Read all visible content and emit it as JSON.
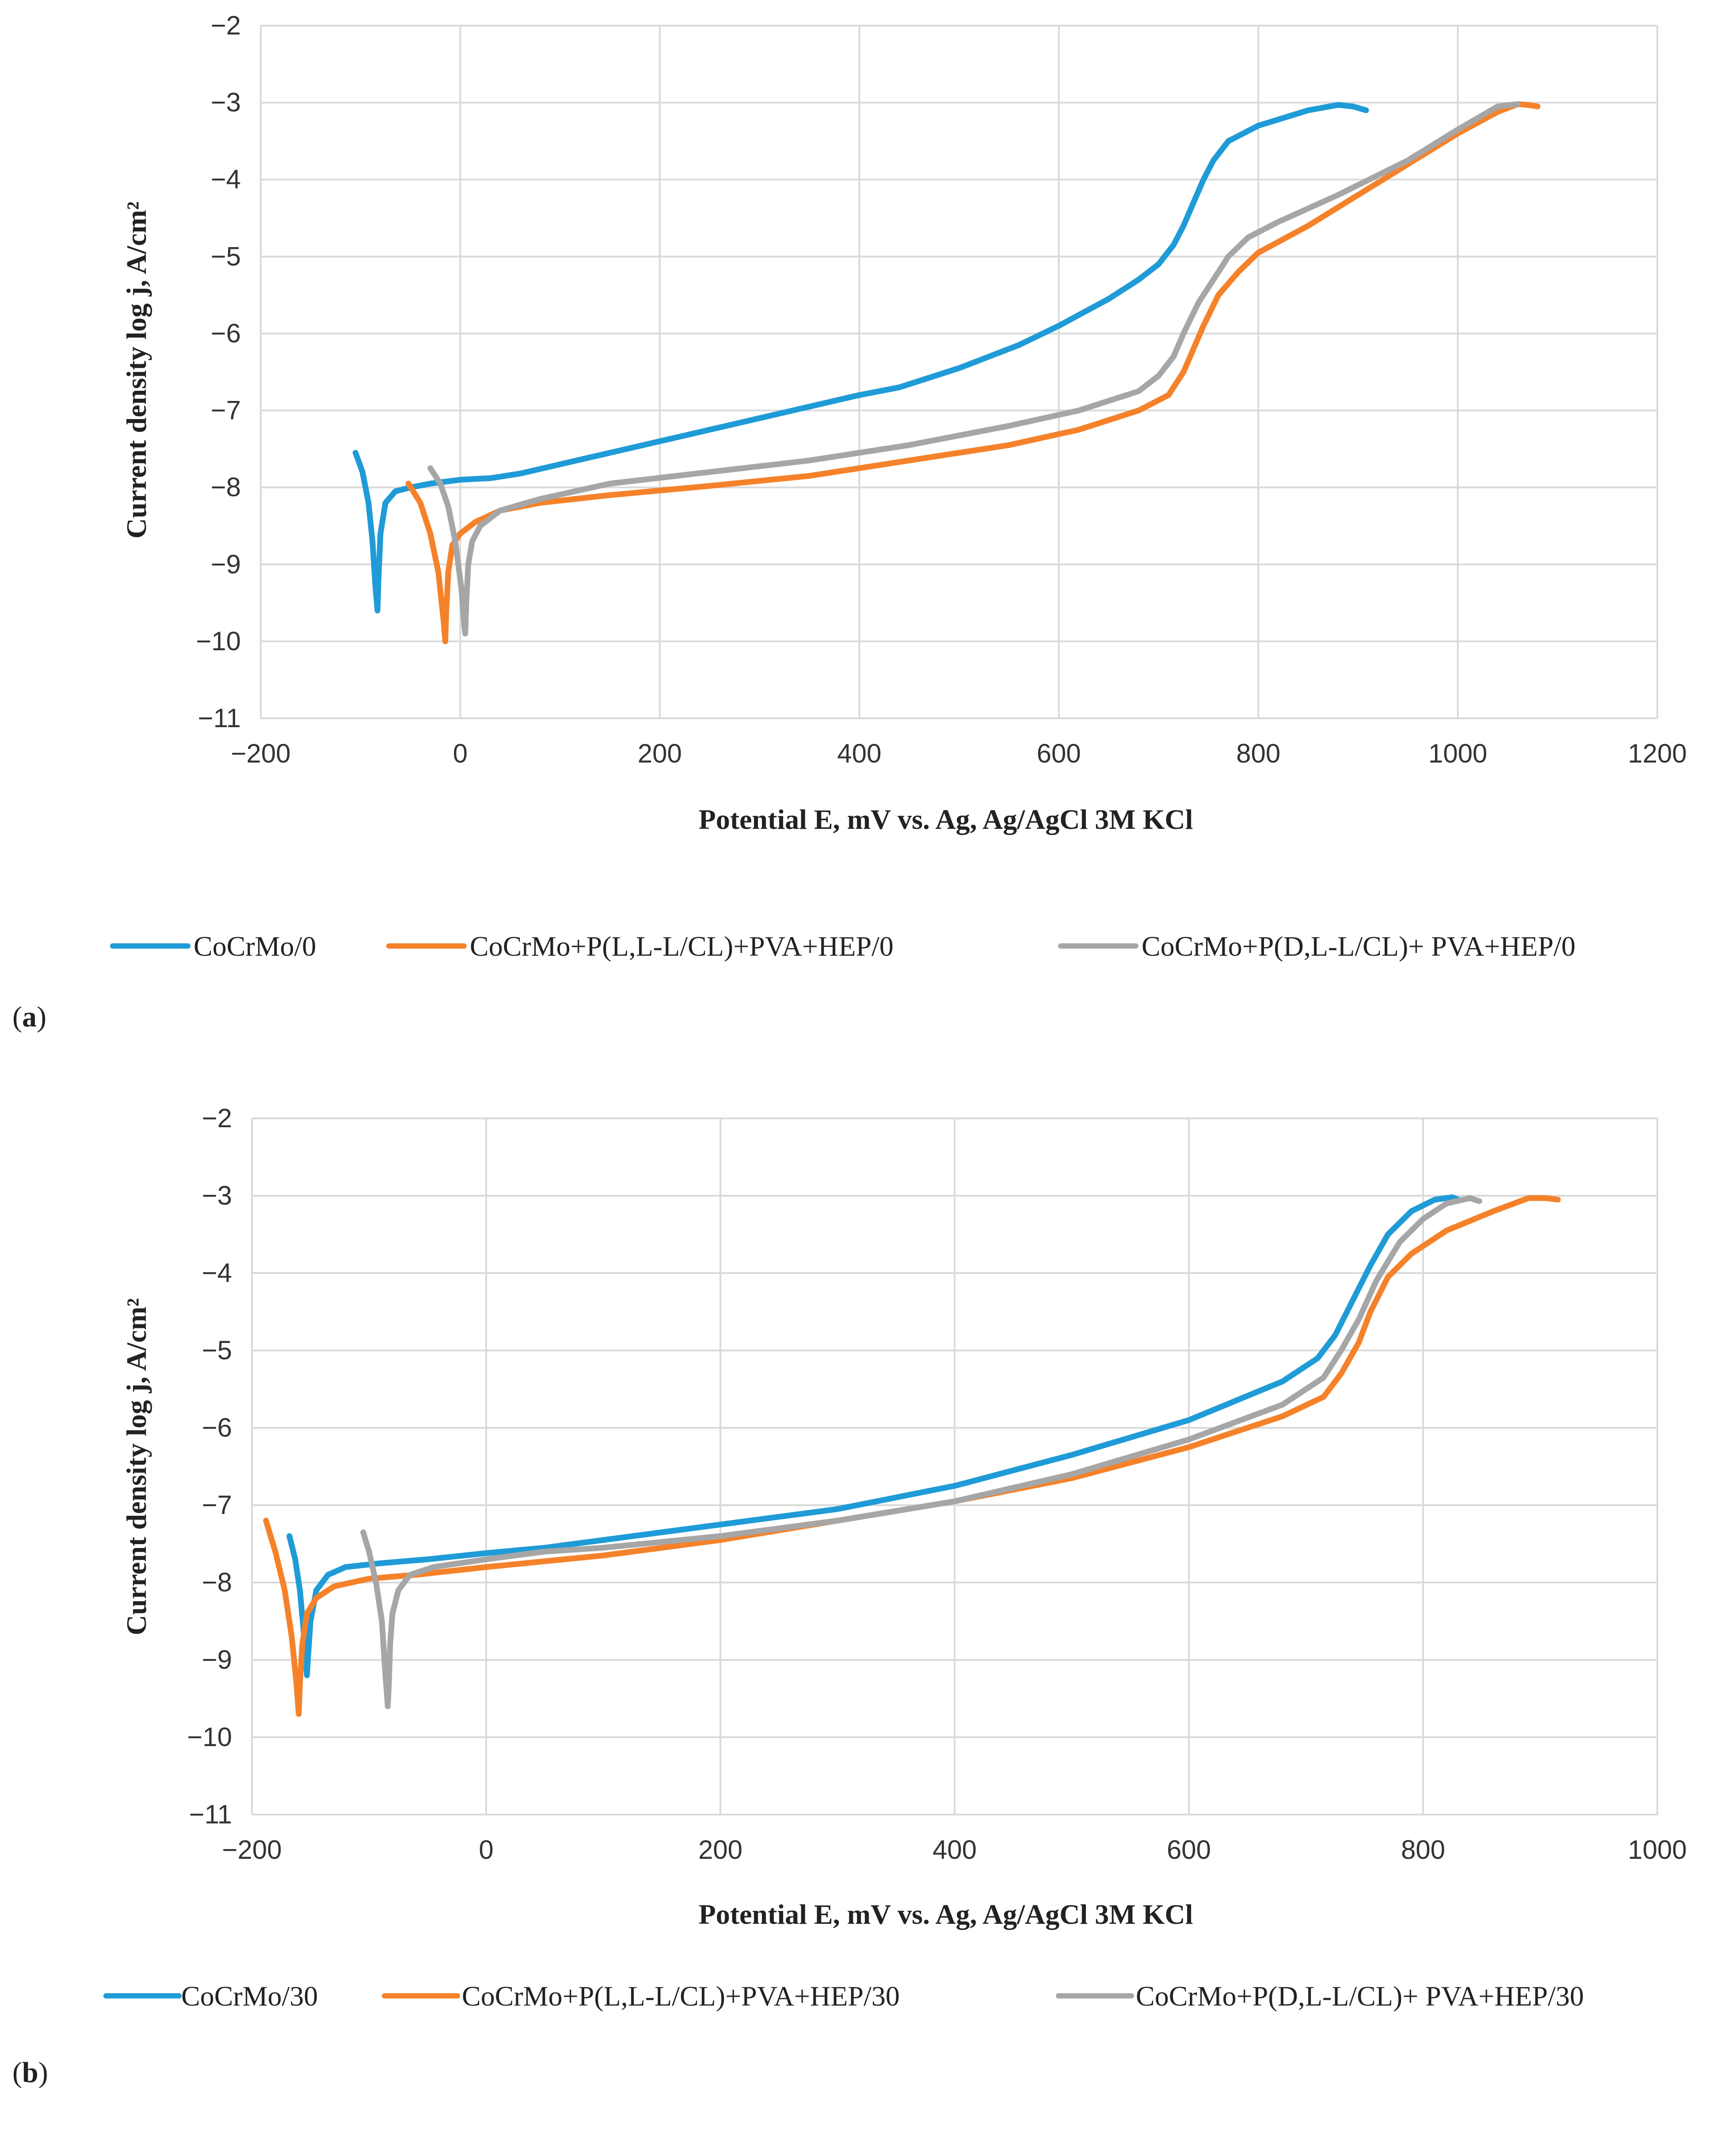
{
  "colors": {
    "blue": "#1f9bd7",
    "orange": "#f5822a",
    "gray": "#a6a6a6",
    "grid": "#d9d9d9"
  },
  "chart_data": [
    {
      "panel_label": "a",
      "type": "line",
      "xlabel": "Potential E, mV vs. Ag, Ag/AgCl 3M KCl",
      "ylabel": "Current density log j, A/cm²",
      "xlim": [
        -200,
        1200
      ],
      "ylim": [
        -11,
        -2
      ],
      "xticks": [
        -200,
        0,
        200,
        400,
        600,
        800,
        1000,
        1200
      ],
      "yticks": [
        -11,
        -10,
        -9,
        -8,
        -7,
        -6,
        -5,
        -4,
        -3,
        -2
      ],
      "xtick_labels": [
        "−200",
        "0",
        "200",
        "400",
        "600",
        "800",
        "1000",
        "1200"
      ],
      "ytick_labels": [
        "−11",
        "−10",
        "−9",
        "−8",
        "−7",
        "−6",
        "−5",
        "−4",
        "−3",
        "−2"
      ],
      "grid": true,
      "legend_position": "bottom",
      "series": [
        {
          "name": "CoCrMo/0",
          "color": "#1f9bd7",
          "x": [
            -105,
            -98,
            -92,
            -88,
            -85,
            -83,
            -82,
            -80,
            -75,
            -65,
            -50,
            -30,
            0,
            30,
            60,
            100,
            150,
            200,
            300,
            400,
            440,
            500,
            560,
            600,
            650,
            680,
            700,
            715,
            725,
            735,
            745,
            755,
            770,
            800,
            850,
            880,
            895,
            908
          ],
          "values": [
            -7.55,
            -7.8,
            -8.2,
            -8.7,
            -9.3,
            -9.6,
            -9.2,
            -8.6,
            -8.2,
            -8.05,
            -8.0,
            -7.95,
            -7.9,
            -7.88,
            -7.82,
            -7.7,
            -7.55,
            -7.4,
            -7.1,
            -6.8,
            -6.7,
            -6.45,
            -6.15,
            -5.9,
            -5.55,
            -5.3,
            -5.1,
            -4.85,
            -4.6,
            -4.3,
            -4.0,
            -3.75,
            -3.5,
            -3.3,
            -3.1,
            -3.03,
            -3.05,
            -3.1
          ]
        },
        {
          "name": "CoCrMo+P(L,L-L/CL)+PVA+HEP/0",
          "color": "#f5822a",
          "x": [
            -52,
            -40,
            -30,
            -22,
            -17,
            -15,
            -14,
            -12,
            -8,
            0,
            15,
            40,
            80,
            150,
            250,
            350,
            450,
            550,
            620,
            680,
            710,
            725,
            735,
            745,
            760,
            780,
            800,
            850,
            900,
            950,
            1000,
            1040,
            1060,
            1070,
            1080
          ],
          "values": [
            -7.95,
            -8.2,
            -8.6,
            -9.1,
            -9.7,
            -10.0,
            -9.6,
            -9.1,
            -8.75,
            -8.6,
            -8.45,
            -8.3,
            -8.2,
            -8.1,
            -7.98,
            -7.85,
            -7.65,
            -7.45,
            -7.25,
            -7.0,
            -6.8,
            -6.5,
            -6.2,
            -5.9,
            -5.5,
            -5.2,
            -4.95,
            -4.6,
            -4.2,
            -3.8,
            -3.4,
            -3.12,
            -3.02,
            -3.03,
            -3.05
          ]
        },
        {
          "name": "CoCrMo+P(D,L-L/CL)+ PVA+HEP/0",
          "color": "#a6a6a6",
          "x": [
            -30,
            -20,
            -12,
            -5,
            1,
            4,
            5,
            6,
            8,
            12,
            20,
            40,
            80,
            150,
            250,
            350,
            450,
            550,
            620,
            680,
            700,
            715,
            725,
            740,
            755,
            770,
            790,
            820,
            880,
            950,
            1000,
            1040,
            1060
          ],
          "values": [
            -7.75,
            -7.95,
            -8.25,
            -8.7,
            -9.3,
            -9.8,
            -9.9,
            -9.5,
            -9.0,
            -8.7,
            -8.5,
            -8.3,
            -8.15,
            -7.95,
            -7.8,
            -7.65,
            -7.45,
            -7.2,
            -7.0,
            -6.75,
            -6.55,
            -6.3,
            -6.0,
            -5.6,
            -5.3,
            -5.0,
            -4.75,
            -4.55,
            -4.2,
            -3.75,
            -3.35,
            -3.05,
            -3.02
          ]
        }
      ]
    },
    {
      "panel_label": "b",
      "type": "line",
      "xlabel": "Potential E, mV vs. Ag, Ag/AgCl 3M KCl",
      "ylabel": "Current density log j, A/cm²",
      "xlim": [
        -200,
        1000
      ],
      "ylim": [
        -11,
        -2
      ],
      "xticks": [
        -200,
        0,
        200,
        400,
        600,
        800,
        1000
      ],
      "yticks": [
        -11,
        -10,
        -9,
        -8,
        -7,
        -6,
        -5,
        -4,
        -3,
        -2
      ],
      "xtick_labels": [
        "−200",
        "0",
        "200",
        "400",
        "600",
        "800",
        "1000"
      ],
      "ytick_labels": [
        "−11",
        "−10",
        "−9",
        "−8",
        "−7",
        "−6",
        "−5",
        "−4",
        "−3",
        "−2"
      ],
      "grid": true,
      "legend_position": "bottom",
      "series": [
        {
          "name": "CoCrMo/30",
          "color": "#1f9bd7",
          "x": [
            -168,
            -163,
            -159,
            -156,
            -154,
            -153,
            -152,
            -150,
            -145,
            -135,
            -120,
            -90,
            -50,
            0,
            50,
            100,
            200,
            300,
            400,
            500,
            600,
            680,
            710,
            725,
            735,
            745,
            755,
            770,
            790,
            810,
            825,
            830
          ],
          "values": [
            -7.4,
            -7.7,
            -8.1,
            -8.6,
            -9.0,
            -9.2,
            -8.95,
            -8.5,
            -8.1,
            -7.9,
            -7.8,
            -7.75,
            -7.7,
            -7.62,
            -7.55,
            -7.45,
            -7.25,
            -7.05,
            -6.75,
            -6.35,
            -5.9,
            -5.4,
            -5.1,
            -4.8,
            -4.5,
            -4.2,
            -3.9,
            -3.5,
            -3.2,
            -3.05,
            -3.02,
            -3.05
          ]
        },
        {
          "name": "CoCrMo+P(L,L-L/CL)+PVA+HEP/30",
          "color": "#f5822a",
          "x": [
            -188,
            -180,
            -172,
            -166,
            -162,
            -160,
            -159,
            -157,
            -153,
            -145,
            -130,
            -100,
            -60,
            0,
            100,
            200,
            300,
            400,
            500,
            600,
            680,
            715,
            730,
            745,
            755,
            770,
            790,
            820,
            860,
            890,
            905,
            915
          ],
          "values": [
            -7.2,
            -7.6,
            -8.1,
            -8.7,
            -9.3,
            -9.7,
            -9.3,
            -8.8,
            -8.4,
            -8.2,
            -8.05,
            -7.95,
            -7.9,
            -7.8,
            -7.65,
            -7.45,
            -7.2,
            -6.95,
            -6.65,
            -6.25,
            -5.85,
            -5.6,
            -5.3,
            -4.9,
            -4.5,
            -4.05,
            -3.75,
            -3.45,
            -3.2,
            -3.03,
            -3.03,
            -3.05
          ]
        },
        {
          "name": "CoCrMo+P(D,L-L/CL)+ PVA+HEP/30",
          "color": "#a6a6a6",
          "x": [
            -105,
            -100,
            -94,
            -89,
            -86,
            -84,
            -83,
            -82,
            -80,
            -75,
            -65,
            -45,
            0,
            50,
            100,
            200,
            300,
            400,
            500,
            600,
            680,
            715,
            730,
            745,
            760,
            780,
            800,
            820,
            840,
            848
          ],
          "values": [
            -7.35,
            -7.6,
            -8.0,
            -8.5,
            -9.2,
            -9.6,
            -9.3,
            -8.8,
            -8.4,
            -8.1,
            -7.9,
            -7.8,
            -7.7,
            -7.6,
            -7.55,
            -7.4,
            -7.2,
            -6.95,
            -6.6,
            -6.15,
            -5.7,
            -5.35,
            -5.0,
            -4.6,
            -4.1,
            -3.6,
            -3.3,
            -3.1,
            -3.03,
            -3.07
          ]
        }
      ]
    }
  ]
}
